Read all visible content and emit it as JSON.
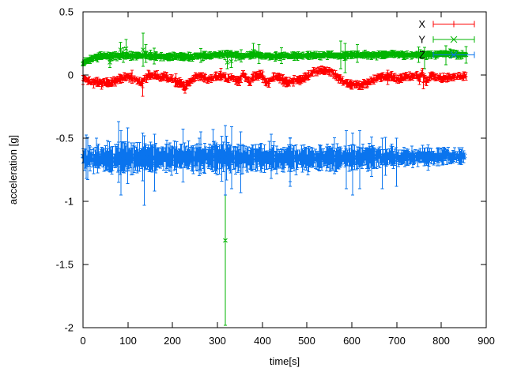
{
  "chart_data": {
    "type": "scatter",
    "subtype": "yerrorbars",
    "title": "",
    "xlabel": "time[s]",
    "ylabel": "acceleration [g]",
    "xlim": [
      0,
      900
    ],
    "ylim": [
      -2,
      0.5
    ],
    "xticks": [
      0,
      100,
      200,
      300,
      400,
      500,
      600,
      700,
      800,
      900
    ],
    "yticks": [
      0.5,
      0,
      -0.5,
      -1,
      -1.5,
      -2
    ],
    "ytick_labels": [
      "0.5",
      "0",
      "-0.5",
      "-1",
      "-1.5",
      "-2"
    ],
    "grid": false,
    "background": "#ffffff",
    "border_color": "#000000",
    "legend": {
      "position": "top-right",
      "entries": [
        "X",
        "Y",
        "Z"
      ]
    },
    "seed": 7,
    "dt": 1.8,
    "series": [
      {
        "name": "X",
        "color": "#ff0000",
        "marker": "plus",
        "x_end": 855,
        "noise": 0.016,
        "err_base": 0.01,
        "err_var": 0.026,
        "big_p": 0.02,
        "big_mult": 1.6,
        "trend": [
          [
            0,
            -0.025
          ],
          [
            15,
            -0.05
          ],
          [
            35,
            -0.065
          ],
          [
            60,
            -0.06
          ],
          [
            80,
            -0.035
          ],
          [
            100,
            -0.015
          ],
          [
            118,
            -0.04
          ],
          [
            130,
            -0.06
          ],
          [
            145,
            -0.005
          ],
          [
            160,
            0.0
          ],
          [
            172,
            -0.02
          ],
          [
            185,
            -0.015
          ],
          [
            200,
            -0.035
          ],
          [
            215,
            -0.06
          ],
          [
            228,
            -0.095
          ],
          [
            240,
            -0.06
          ],
          [
            252,
            -0.01
          ],
          [
            265,
            -0.005
          ],
          [
            278,
            -0.045
          ],
          [
            290,
            -0.025
          ],
          [
            302,
            -0.015
          ],
          [
            312,
            -0.005
          ],
          [
            322,
            -0.04
          ],
          [
            332,
            -0.01
          ],
          [
            342,
            -0.05
          ],
          [
            350,
            -0.045
          ],
          [
            357,
            0.015
          ],
          [
            366,
            -0.025
          ],
          [
            372,
            -0.06
          ],
          [
            382,
            -0.01
          ],
          [
            390,
            -0.005
          ],
          [
            398,
            0.005
          ],
          [
            408,
            -0.05
          ],
          [
            415,
            -0.065
          ],
          [
            425,
            -0.02
          ],
          [
            437,
            -0.015
          ],
          [
            448,
            -0.05
          ],
          [
            460,
            -0.055
          ],
          [
            472,
            -0.04
          ],
          [
            485,
            -0.035
          ],
          [
            498,
            -0.02
          ],
          [
            512,
            0.02
          ],
          [
            528,
            0.04
          ],
          [
            545,
            0.035
          ],
          [
            558,
            0.02
          ],
          [
            568,
            -0.02
          ],
          [
            580,
            -0.05
          ],
          [
            595,
            -0.07
          ],
          [
            610,
            -0.08
          ],
          [
            622,
            -0.075
          ],
          [
            635,
            -0.06
          ],
          [
            648,
            -0.04
          ],
          [
            660,
            -0.02
          ],
          [
            672,
            -0.01
          ],
          [
            688,
            -0.015
          ],
          [
            700,
            -0.03
          ],
          [
            712,
            -0.02
          ],
          [
            722,
            -0.005
          ],
          [
            733,
            -0.02
          ],
          [
            742,
            0.01
          ],
          [
            750,
            -0.03
          ],
          [
            758,
            0.015
          ],
          [
            766,
            -0.055
          ],
          [
            774,
            -0.01
          ],
          [
            784,
            -0.01
          ],
          [
            795,
            -0.02
          ],
          [
            808,
            -0.025
          ],
          [
            820,
            -0.015
          ],
          [
            835,
            -0.01
          ],
          [
            855,
            -0.01
          ]
        ],
        "outliers": [
          {
            "x": 133,
            "y": -0.1,
            "lo": -0.17,
            "hi": -0.03
          },
          {
            "x": 228,
            "y": -0.1,
            "lo": -0.145,
            "hi": -0.06
          },
          {
            "x": 760,
            "y": -0.06,
            "lo": -0.11,
            "hi": -0.01
          }
        ]
      },
      {
        "name": "Y",
        "color": "#00b400",
        "marker": "cross",
        "x_end": 855,
        "noise": 0.011,
        "err_base": 0.009,
        "err_var": 0.024,
        "big_p": 0.04,
        "big_mult": 2.0,
        "trend": [
          [
            0,
            0.09
          ],
          [
            10,
            0.115
          ],
          [
            25,
            0.135
          ],
          [
            45,
            0.15
          ],
          [
            70,
            0.15
          ],
          [
            90,
            0.155
          ],
          [
            110,
            0.15
          ],
          [
            135,
            0.155
          ],
          [
            160,
            0.148
          ],
          [
            185,
            0.143
          ],
          [
            210,
            0.148
          ],
          [
            235,
            0.143
          ],
          [
            260,
            0.15
          ],
          [
            285,
            0.155
          ],
          [
            310,
            0.165
          ],
          [
            325,
            0.165
          ],
          [
            340,
            0.155
          ],
          [
            355,
            0.15
          ],
          [
            370,
            0.158
          ],
          [
            385,
            0.165
          ],
          [
            400,
            0.152
          ],
          [
            420,
            0.148
          ],
          [
            445,
            0.15
          ],
          [
            470,
            0.155
          ],
          [
            495,
            0.15
          ],
          [
            520,
            0.155
          ],
          [
            545,
            0.158
          ],
          [
            570,
            0.152
          ],
          [
            595,
            0.156
          ],
          [
            620,
            0.158
          ],
          [
            645,
            0.157
          ],
          [
            670,
            0.16
          ],
          [
            695,
            0.165
          ],
          [
            720,
            0.158
          ],
          [
            745,
            0.162
          ],
          [
            770,
            0.16
          ],
          [
            790,
            0.166
          ],
          [
            815,
            0.168
          ],
          [
            835,
            0.16
          ],
          [
            855,
            0.16
          ]
        ],
        "outliers": [
          {
            "x": 60,
            "y": 0.1,
            "lo": 0.06,
            "hi": 0.15
          },
          {
            "x": 84,
            "y": 0.2,
            "lo": 0.14,
            "hi": 0.26
          },
          {
            "x": 96,
            "y": 0.21,
            "lo": 0.15,
            "hi": 0.28
          },
          {
            "x": 134,
            "y": 0.2,
            "lo": 0.07,
            "hi": 0.33
          },
          {
            "x": 140,
            "y": 0.17,
            "lo": 0.1,
            "hi": 0.24
          },
          {
            "x": 318,
            "y": -1.31,
            "lo": -1.98,
            "hi": -0.64
          },
          {
            "x": 322,
            "y": 0.1,
            "lo": 0.05,
            "hi": 0.16
          },
          {
            "x": 331,
            "y": 0.11,
            "lo": 0.06,
            "hi": 0.16
          },
          {
            "x": 380,
            "y": 0.19,
            "lo": 0.13,
            "hi": 0.25
          },
          {
            "x": 393,
            "y": 0.17,
            "lo": 0.09,
            "hi": 0.24
          },
          {
            "x": 575,
            "y": 0.16,
            "lo": 0.05,
            "hi": 0.27
          },
          {
            "x": 585,
            "y": 0.14,
            "lo": 0.02,
            "hi": 0.25
          },
          {
            "x": 612,
            "y": 0.17,
            "lo": 0.1,
            "hi": 0.24
          },
          {
            "x": 762,
            "y": 0.14,
            "lo": 0.05,
            "hi": 0.22
          },
          {
            "x": 810,
            "y": 0.16,
            "lo": 0.08,
            "hi": 0.23
          }
        ]
      },
      {
        "name": "Z",
        "color": "#0a74ee",
        "marker": "cross",
        "x_end": 853,
        "noise": 0.03,
        "err_base": 0.032,
        "err_var": 0.07,
        "big_p": 0.05,
        "big_mult": 1.8,
        "spread": [
          [
            0,
            1.0
          ],
          [
            80,
            1.3
          ],
          [
            180,
            1.15
          ],
          [
            300,
            1.2
          ],
          [
            420,
            1.1
          ],
          [
            520,
            1.05
          ],
          [
            620,
            1.0
          ],
          [
            700,
            0.75
          ],
          [
            860,
            0.65
          ]
        ],
        "trend": [
          [
            0,
            -0.655
          ],
          [
            50,
            -0.66
          ],
          [
            120,
            -0.655
          ],
          [
            200,
            -0.65
          ],
          [
            280,
            -0.655
          ],
          [
            360,
            -0.655
          ],
          [
            440,
            -0.658
          ],
          [
            520,
            -0.66
          ],
          [
            600,
            -0.655
          ],
          [
            680,
            -0.65
          ],
          [
            740,
            -0.648
          ],
          [
            790,
            -0.645
          ],
          [
            855,
            -0.645
          ]
        ],
        "outliers": [
          {
            "x": 30,
            "y": -0.62,
            "lo": -0.72,
            "hi": -0.5
          },
          {
            "x": 55,
            "y": -0.63,
            "lo": -0.75,
            "hi": -0.52
          },
          {
            "x": 79,
            "y": -0.62,
            "lo": -0.85,
            "hi": -0.37
          },
          {
            "x": 85,
            "y": -0.68,
            "lo": -0.95,
            "hi": -0.44
          },
          {
            "x": 100,
            "y": -0.64,
            "lo": -0.86,
            "hi": -0.42
          },
          {
            "x": 137,
            "y": -0.72,
            "lo": -1.03,
            "hi": -0.48
          },
          {
            "x": 160,
            "y": -0.7,
            "lo": -0.92,
            "hi": -0.47
          },
          {
            "x": 263,
            "y": -0.6,
            "lo": -0.78,
            "hi": -0.45
          },
          {
            "x": 290,
            "y": -0.58,
            "lo": -0.73,
            "hi": -0.43
          },
          {
            "x": 318,
            "y": -0.66,
            "lo": -0.95,
            "hi": -0.4
          },
          {
            "x": 332,
            "y": -0.64,
            "lo": -0.9,
            "hi": -0.41
          },
          {
            "x": 352,
            "y": -0.67,
            "lo": -0.93,
            "hi": -0.45
          },
          {
            "x": 420,
            "y": -0.63,
            "lo": -0.82,
            "hi": -0.47
          },
          {
            "x": 462,
            "y": -0.68,
            "lo": -0.88,
            "hi": -0.5
          },
          {
            "x": 588,
            "y": -0.66,
            "lo": -0.9,
            "hi": -0.44
          },
          {
            "x": 602,
            "y": -0.7,
            "lo": -0.95,
            "hi": -0.46
          },
          {
            "x": 618,
            "y": -0.65,
            "lo": -0.9,
            "hi": -0.44
          },
          {
            "x": 668,
            "y": -0.68,
            "lo": -0.9,
            "hi": -0.5
          },
          {
            "x": 700,
            "y": -0.67,
            "lo": -0.88,
            "hi": -0.5
          }
        ]
      }
    ]
  }
}
